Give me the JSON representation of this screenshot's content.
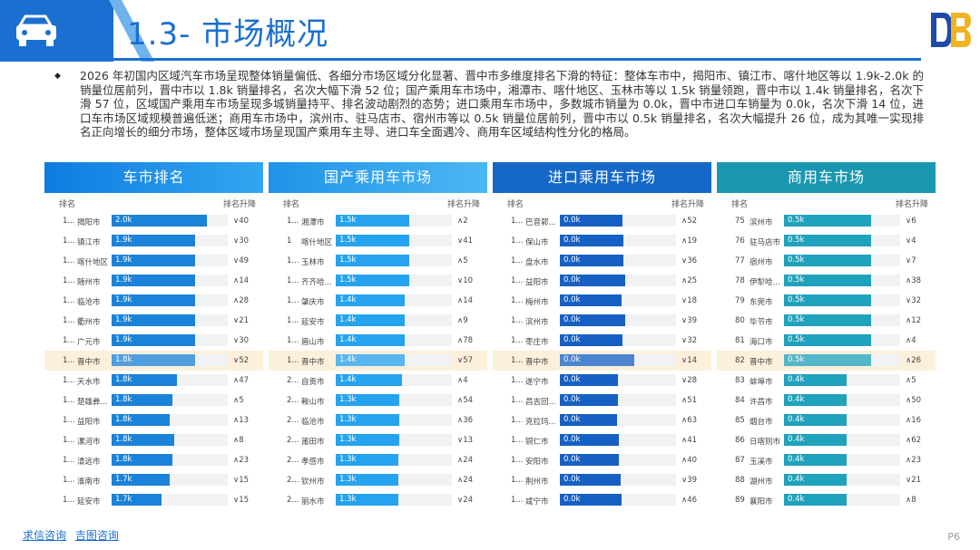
{
  "title": "1.3- 市场概况",
  "summary": "2026 年初国内区域汽车市场呈现整体销量偏低、各细分市场区域分化显著、晋中市多维度排名下滑的特征：整体车市中，揭阳市、镇江市、喀什地区等以 1.9k-2.0k 的销量位居前列，晋中市以 1.8k 销量排名，名次大幅下滑 52 位；国产乘用车市场中，湘潭市、喀什地区、玉林市等以 1.5k 销量领跑，晋中市以 1.4k 销量排名，名次下滑 57 位，区域国产乘用车市场呈现多城销量持平、排名波动剧烈的态势；进口乘用车市场中，多数城市销量为 0.0k，晋中市进口车销量为 0.0k，名次下滑 14 位，进口车市场区域规模普遍低迷；商用车市场中，滨州市、驻马店市、宿州市等以 0.5k 销量位居前列，晋中市以 0.5k 销量排名，名次大幅提升 26 位，成为其唯一实现排名正向增长的细分市场，整体区域市场呈现国产乘用车主导、进口车全面遇冷、商用车区域结构性分化的格局。",
  "bullet": "◆",
  "colors": {
    "primary": "#1a6fd1",
    "highlight_row": "#fcf0da",
    "commercial": "#1fa2bb"
  },
  "icons": {
    "header": "car-icon",
    "logo": "db-logo-icon"
  },
  "panels": [
    {
      "title": "车市排名",
      "col_rank": "排名",
      "col_change": "排名升降",
      "max": 2.0,
      "rows": [
        {
          "rank": "1...",
          "city": "揭阳市",
          "value": 2.0,
          "label": "2.0k",
          "change": "∨40"
        },
        {
          "rank": "1...",
          "city": "镇江市",
          "value": 1.9,
          "label": "1.9k",
          "change": "∨30"
        },
        {
          "rank": "1...",
          "city": "喀什地区",
          "value": 1.9,
          "label": "1.9k",
          "change": "∨49"
        },
        {
          "rank": "1...",
          "city": "随州市",
          "value": 1.9,
          "label": "1.9k",
          "change": "∧14"
        },
        {
          "rank": "1...",
          "city": "临沧市",
          "value": 1.9,
          "label": "1.9k",
          "change": "∧28"
        },
        {
          "rank": "1...",
          "city": "衢州市",
          "value": 1.9,
          "label": "1.9k",
          "change": "∨21"
        },
        {
          "rank": "1...",
          "city": "广元市",
          "value": 1.9,
          "label": "1.9k",
          "change": "∨30"
        },
        {
          "rank": "1...",
          "city": "晋中市",
          "value": 1.8,
          "label": "1.8k",
          "change": "∨52",
          "hl": true
        },
        {
          "rank": "1...",
          "city": "天水市",
          "value": 1.8,
          "label": "1.8k",
          "change": "∧47"
        },
        {
          "rank": "1...",
          "city": "楚雄彝...",
          "value": 1.8,
          "label": "1.8k",
          "change": "∧5"
        },
        {
          "rank": "1...",
          "city": "益阳市",
          "value": 1.8,
          "label": "1.8k",
          "change": "∧13"
        },
        {
          "rank": "1...",
          "city": "漯河市",
          "value": 1.8,
          "label": "1.8k",
          "change": "∧8"
        },
        {
          "rank": "1...",
          "city": "清远市",
          "value": 1.8,
          "label": "1.8k",
          "change": "∧23"
        },
        {
          "rank": "1...",
          "city": "淮南市",
          "value": 1.7,
          "label": "1.7k",
          "change": "∨15"
        },
        {
          "rank": "1...",
          "city": "延安市",
          "value": 1.7,
          "label": "1.7k",
          "change": "∨15"
        }
      ]
    },
    {
      "title": "国产乘用车市场",
      "col_rank": "排名",
      "col_change": "排名升降",
      "max": 2.0,
      "rows": [
        {
          "rank": "1...",
          "city": "湘潭市",
          "value": 1.5,
          "label": "1.5k",
          "change": "∧2"
        },
        {
          "rank": "1",
          "city": "喀什地区",
          "value": 1.5,
          "label": "1.5k",
          "change": "∨41"
        },
        {
          "rank": "1...",
          "city": "玉林市",
          "value": 1.5,
          "label": "1.5k",
          "change": "∧5"
        },
        {
          "rank": "1...",
          "city": "齐齐哈...",
          "value": 1.5,
          "label": "1.5k",
          "change": "∨10"
        },
        {
          "rank": "1...",
          "city": "肇庆市",
          "value": 1.4,
          "label": "1.4k",
          "change": "∧14"
        },
        {
          "rank": "1...",
          "city": "延安市",
          "value": 1.4,
          "label": "1.4k",
          "change": "∧9"
        },
        {
          "rank": "1...",
          "city": "眉山市",
          "value": 1.4,
          "label": "1.4k",
          "change": "∧78"
        },
        {
          "rank": "1...",
          "city": "晋中市",
          "value": 1.4,
          "label": "1.4k",
          "change": "∨57",
          "hl": true
        },
        {
          "rank": "2...",
          "city": "自贡市",
          "value": 1.4,
          "label": "1.4k",
          "change": "∧4"
        },
        {
          "rank": "2...",
          "city": "鞍山市",
          "value": 1.3,
          "label": "1.3k",
          "change": "∧54"
        },
        {
          "rank": "2...",
          "city": "临沧市",
          "value": 1.3,
          "label": "1.3k",
          "change": "∧36"
        },
        {
          "rank": "2...",
          "city": "莆田市",
          "value": 1.3,
          "label": "1.3k",
          "change": "∨13"
        },
        {
          "rank": "2...",
          "city": "孝感市",
          "value": 1.3,
          "label": "1.3k",
          "change": "∧24"
        },
        {
          "rank": "2...",
          "city": "钦州市",
          "value": 1.3,
          "label": "1.3k",
          "change": "∧24"
        },
        {
          "rank": "2...",
          "city": "丽水市",
          "value": 1.3,
          "label": "1.3k",
          "change": "∨24"
        }
      ]
    },
    {
      "title": "进口乘用车市场",
      "col_rank": "排名",
      "col_change": "排名升降",
      "max": 0.0,
      "rows": [
        {
          "rank": "1...",
          "city": "巴音郭...",
          "value": 0.0,
          "label": "0.0k",
          "change": "∧52"
        },
        {
          "rank": "1...",
          "city": "保山市",
          "value": 0.0,
          "label": "0.0k",
          "change": "∧19"
        },
        {
          "rank": "1...",
          "city": "盘水市",
          "value": 0.0,
          "label": "0.0k",
          "change": "∨36"
        },
        {
          "rank": "1...",
          "city": "益阳市",
          "value": 0.0,
          "label": "0.0k",
          "change": "∧25"
        },
        {
          "rank": "1...",
          "city": "梅州市",
          "value": 0.0,
          "label": "0.0k",
          "change": "∨18"
        },
        {
          "rank": "1...",
          "city": "滨州市",
          "value": 0.0,
          "label": "0.0k",
          "change": "∨39"
        },
        {
          "rank": "1...",
          "city": "枣庄市",
          "value": 0.0,
          "label": "0.0k",
          "change": "∨32"
        },
        {
          "rank": "1...",
          "city": "晋中市",
          "value": 0.0,
          "label": "0.0k",
          "change": "∨14",
          "hl": true
        },
        {
          "rank": "1...",
          "city": "遂宁市",
          "value": 0.0,
          "label": "0.0k",
          "change": "∨28"
        },
        {
          "rank": "1...",
          "city": "昌吉回...",
          "value": 0.0,
          "label": "0.0k",
          "change": "∧51"
        },
        {
          "rank": "1...",
          "city": "克拉玛...",
          "value": 0.0,
          "label": "0.0k",
          "change": "∧63"
        },
        {
          "rank": "1...",
          "city": "铜仁市",
          "value": 0.0,
          "label": "0.0k",
          "change": "∧41"
        },
        {
          "rank": "1...",
          "city": "安阳市",
          "value": 0.0,
          "label": "0.0k",
          "change": "∧40"
        },
        {
          "rank": "1...",
          "city": "荆州市",
          "value": 0.0,
          "label": "0.0k",
          "change": "∨39"
        },
        {
          "rank": "1...",
          "city": "咸宁市",
          "value": 0.0,
          "label": "0.0k",
          "change": "∧46"
        }
      ]
    },
    {
      "title": "商用车市场",
      "col_rank": "排名",
      "col_change": "排名升降",
      "max": 0.5,
      "rows": [
        {
          "rank": "75",
          "city": "滨州市",
          "value": 0.5,
          "label": "0.5k",
          "change": "∨6"
        },
        {
          "rank": "76",
          "city": "驻马店市",
          "value": 0.5,
          "label": "0.5k",
          "change": "∨4"
        },
        {
          "rank": "77",
          "city": "宿州市",
          "value": 0.5,
          "label": "0.5k",
          "change": "∨7"
        },
        {
          "rank": "78",
          "city": "伊犁哈...",
          "value": 0.5,
          "label": "0.5k",
          "change": "∧38"
        },
        {
          "rank": "79",
          "city": "东莞市",
          "value": 0.5,
          "label": "0.5k",
          "change": "∨32"
        },
        {
          "rank": "80",
          "city": "毕节市",
          "value": 0.5,
          "label": "0.5k",
          "change": "∧12"
        },
        {
          "rank": "81",
          "city": "海口市",
          "value": 0.5,
          "label": "0.5k",
          "change": "∧4"
        },
        {
          "rank": "82",
          "city": "晋中市",
          "value": 0.5,
          "label": "0.5k",
          "change": "∧26",
          "hl": true
        },
        {
          "rank": "83",
          "city": "蚌埠市",
          "value": 0.4,
          "label": "0.4k",
          "change": "∧5"
        },
        {
          "rank": "84",
          "city": "许昌市",
          "value": 0.4,
          "label": "0.4k",
          "change": "∧50"
        },
        {
          "rank": "85",
          "city": "烟台市",
          "value": 0.4,
          "label": "0.4k",
          "change": "∧16"
        },
        {
          "rank": "86",
          "city": "日喀则市",
          "value": 0.4,
          "label": "0.4k",
          "change": "∧62"
        },
        {
          "rank": "87",
          "city": "玉溪市",
          "value": 0.4,
          "label": "0.4k",
          "change": "∧23"
        },
        {
          "rank": "88",
          "city": "湖州市",
          "value": 0.4,
          "label": "0.4k",
          "change": "∨21"
        },
        {
          "rank": "89",
          "city": "襄阳市",
          "value": 0.4,
          "label": "0.4k",
          "change": "∧8"
        }
      ]
    }
  ],
  "footer": {
    "link1": "求信咨询",
    "link2": "吉图咨询",
    "page": "P6"
  }
}
